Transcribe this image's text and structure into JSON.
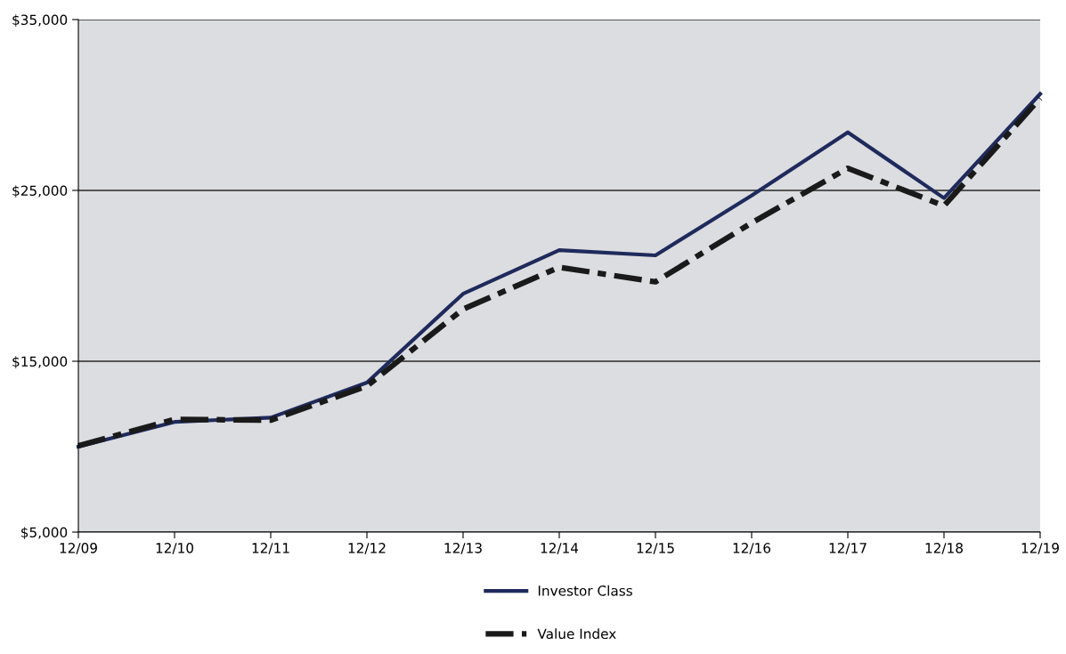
{
  "chart_data": {
    "type": "line",
    "categories": [
      "12/09",
      "12/10",
      "12/11",
      "12/12",
      "12/13",
      "12/14",
      "12/15",
      "12/16",
      "12/17",
      "12/18",
      "12/19"
    ],
    "series": [
      {
        "name": "Investor Class",
        "color": "#1f2a5c",
        "line_style": "solid",
        "values": [
          10000,
          11450,
          11700,
          13750,
          18950,
          21500,
          21200,
          24700,
          28400,
          24550,
          30650
        ]
      },
      {
        "name": "Value Index",
        "color": "#1a1a1a",
        "line_style": "dashed",
        "values": [
          10050,
          11600,
          11550,
          13550,
          18050,
          20500,
          19650,
          23100,
          26300,
          24100,
          30400
        ]
      }
    ],
    "ylim": [
      5000,
      35000
    ],
    "yticks": [
      {
        "value": 5000,
        "label": "$5,000"
      },
      {
        "value": 15000,
        "label": "$15,000"
      },
      {
        "value": 25000,
        "label": "$25,000"
      },
      {
        "value": 35000,
        "label": "$35,000"
      }
    ],
    "grid": "y",
    "legend": "bottom",
    "marker": "none"
  }
}
